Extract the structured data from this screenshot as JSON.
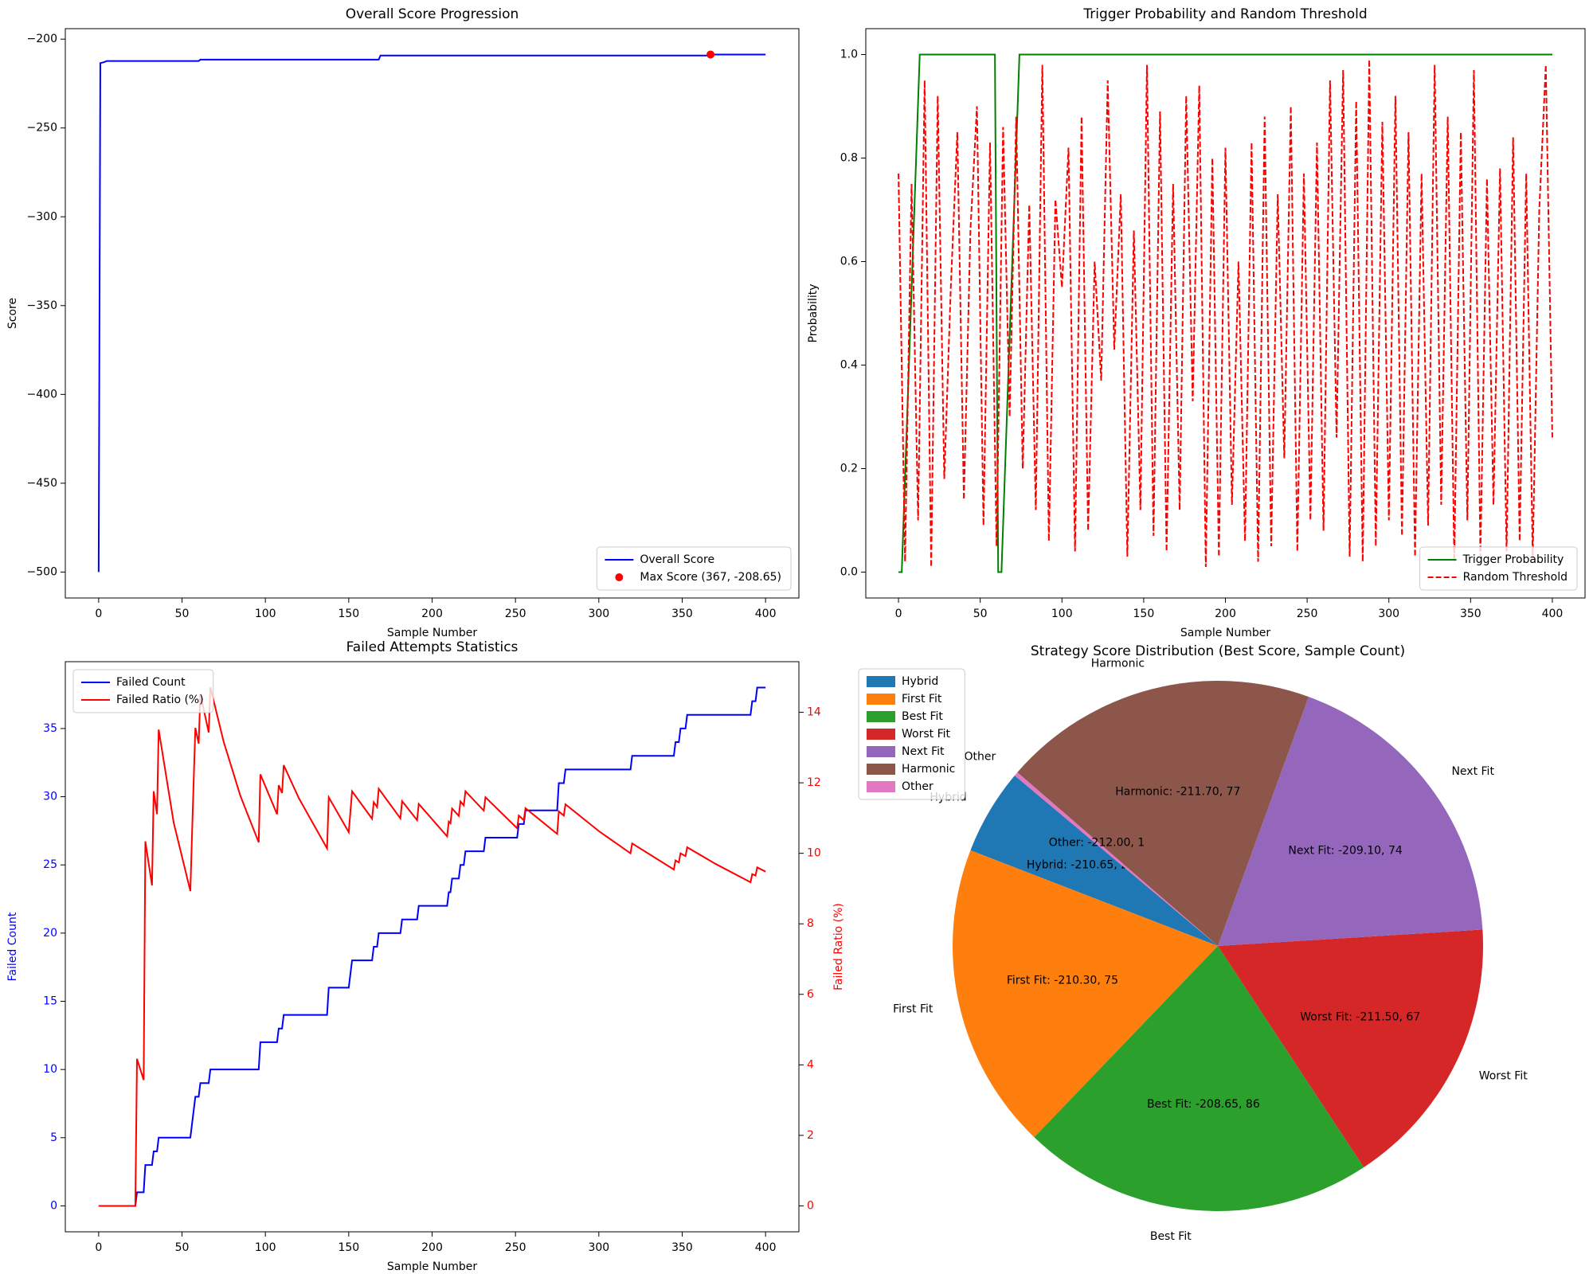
{
  "chart_data": [
    {
      "type": "line",
      "title": "Overall Score Progression",
      "x_label": "Sample Number",
      "y_label": "Score",
      "xlim": [
        -20,
        420
      ],
      "ylim": [
        -514.6,
        -194.1
      ],
      "xticks": [
        0,
        50,
        100,
        150,
        200,
        250,
        300,
        350,
        400
      ],
      "yticks": [
        {
          "value": -500,
          "label": "−500"
        },
        {
          "value": -450,
          "label": "−450"
        },
        {
          "value": -400,
          "label": "−400"
        },
        {
          "value": -350,
          "label": "−350"
        },
        {
          "value": -300,
          "label": "−300"
        },
        {
          "value": -250,
          "label": "−250"
        },
        {
          "value": -200,
          "label": "−200"
        }
      ],
      "legend": "lower right",
      "series": [
        {
          "name": "Overall Score",
          "color": "#0000ff",
          "x": [
            0,
            1,
            3,
            5,
            60,
            61,
            168,
            169,
            366,
            367,
            400
          ],
          "values": [
            -500,
            -213.5,
            -213,
            -212.3,
            -212.3,
            -211.5,
            -211.5,
            -209.2,
            -209.2,
            -208.65,
            -208.65
          ]
        },
        {
          "name": "Max Score (367, -208.65)",
          "type": "scatter",
          "color": "#ff0000",
          "x": [
            367
          ],
          "values": [
            -208.65
          ]
        }
      ]
    },
    {
      "type": "line",
      "title": "Trigger Probability and Random Threshold",
      "x_label": "Sample Number",
      "y_label": "Probability",
      "xlim": [
        -20,
        420
      ],
      "ylim": [
        -0.05,
        1.05
      ],
      "xticks": [
        0,
        50,
        100,
        150,
        200,
        250,
        300,
        350,
        400
      ],
      "yticks": [
        {
          "value": 0,
          "label": "0.0"
        },
        {
          "value": 0.2,
          "label": "0.2"
        },
        {
          "value": 0.4,
          "label": "0.4"
        },
        {
          "value": 0.6,
          "label": "0.6"
        },
        {
          "value": 0.8,
          "label": "0.8"
        },
        {
          "value": 1,
          "label": "1.0"
        }
      ],
      "legend": "lower right",
      "series": [
        {
          "name": "Trigger Probability",
          "color": "#008000",
          "x": [
            0,
            2,
            13,
            59,
            61,
            63,
            74,
            400
          ],
          "values": [
            0,
            0,
            1,
            1,
            0,
            0,
            1,
            1
          ]
        },
        {
          "name": "Random Threshold",
          "color": "#ff0000",
          "linestyle": "dashed",
          "x": [
            0,
            4,
            8,
            12,
            16,
            20,
            24,
            28,
            32,
            36,
            40,
            44,
            48,
            52,
            56,
            60,
            64,
            68,
            72,
            76,
            80,
            84,
            88,
            92,
            96,
            100,
            104,
            108,
            112,
            116,
            120,
            124,
            128,
            132,
            136,
            140,
            144,
            148,
            152,
            156,
            160,
            164,
            168,
            172,
            176,
            180,
            184,
            188,
            192,
            196,
            200,
            204,
            208,
            212,
            216,
            220,
            224,
            228,
            232,
            236,
            240,
            244,
            248,
            252,
            256,
            260,
            264,
            268,
            272,
            276,
            280,
            284,
            288,
            292,
            296,
            300,
            304,
            308,
            312,
            316,
            320,
            324,
            328,
            332,
            336,
            340,
            344,
            348,
            352,
            356,
            360,
            364,
            368,
            372,
            376,
            380,
            384,
            388,
            392,
            396,
            400
          ],
          "values": [
            0.77,
            0.02,
            0.75,
            0.1,
            0.95,
            0.01,
            0.92,
            0.18,
            0.55,
            0.85,
            0.14,
            0.66,
            0.9,
            0.09,
            0.83,
            0.05,
            0.86,
            0.3,
            0.88,
            0.2,
            0.71,
            0.12,
            0.98,
            0.06,
            0.72,
            0.55,
            0.82,
            0.04,
            0.88,
            0.08,
            0.6,
            0.37,
            0.95,
            0.43,
            0.73,
            0.03,
            0.66,
            0.12,
            0.98,
            0.07,
            0.89,
            0.04,
            0.75,
            0.12,
            0.92,
            0.33,
            0.94,
            0.01,
            0.8,
            0.03,
            0.82,
            0.13,
            0.6,
            0.06,
            0.83,
            0.02,
            0.88,
            0.05,
            0.73,
            0.22,
            0.9,
            0.04,
            0.77,
            0.1,
            0.83,
            0.08,
            0.95,
            0.26,
            0.97,
            0.03,
            0.91,
            0.02,
            0.99,
            0.05,
            0.87,
            0.1,
            0.92,
            0.07,
            0.85,
            0.03,
            0.77,
            0.09,
            0.98,
            0.13,
            0.88,
            0.02,
            0.85,
            0.1,
            0.97,
            0.03,
            0.76,
            0.13,
            0.78,
            0.04,
            0.84,
            0.06,
            0.77,
            0.03,
            0.7,
            0.98,
            0.26
          ]
        }
      ]
    },
    {
      "type": "line",
      "title": "Failed Attempts Statistics",
      "x_label": "Sample Number",
      "y_label": "Failed Count",
      "y_color": "#0000ff",
      "y2_label": "Failed Ratio (%)",
      "y2_color": "#ff0000",
      "xlim": [
        -20,
        420
      ],
      "ylim": [
        -1.9,
        39.9
      ],
      "y2lim": [
        -0.735,
        15.435
      ],
      "xticks": [
        0,
        50,
        100,
        150,
        200,
        250,
        300,
        350,
        400
      ],
      "yticks": [
        0,
        5,
        10,
        15,
        20,
        25,
        30,
        35
      ],
      "y2ticks": [
        0,
        2,
        4,
        6,
        8,
        10,
        12,
        14
      ],
      "legend": "upper left",
      "series": [
        {
          "name": "Failed Count",
          "color": "#0000ff",
          "x": [
            0,
            22,
            23,
            27,
            28,
            32,
            33,
            35,
            36,
            55,
            56,
            57,
            58,
            60,
            61,
            66,
            67,
            96,
            97,
            107,
            108,
            110,
            111,
            137,
            138,
            150,
            151,
            152,
            164,
            165,
            167,
            168,
            181,
            182,
            191,
            192,
            209,
            210,
            211,
            212,
            216,
            217,
            219,
            220,
            231,
            232,
            251,
            252,
            255,
            256,
            275,
            276,
            279,
            280,
            319,
            320,
            345,
            346,
            348,
            349,
            352,
            353,
            391,
            392,
            394,
            395,
            400
          ],
          "values": [
            0,
            0,
            1,
            1,
            3,
            3,
            4,
            4,
            5,
            5,
            6,
            7,
            8,
            8,
            9,
            9,
            10,
            10,
            12,
            12,
            13,
            13,
            14,
            14,
            16,
            16,
            17,
            18,
            18,
            19,
            19,
            20,
            20,
            21,
            21,
            22,
            22,
            23,
            23,
            24,
            24,
            25,
            25,
            26,
            26,
            27,
            27,
            28,
            28,
            29,
            29,
            31,
            31,
            32,
            32,
            33,
            33,
            34,
            34,
            35,
            35,
            36,
            36,
            37,
            37,
            38,
            38
          ]
        },
        {
          "name": "Failed Ratio (%)",
          "color": "#ff0000",
          "axis": "y2",
          "x": [
            0,
            22,
            23,
            27,
            28,
            32,
            33,
            35,
            36,
            45,
            55,
            56,
            57,
            58,
            60,
            61,
            66,
            67,
            75,
            85,
            96,
            97,
            107,
            108,
            110,
            111,
            120,
            137,
            138,
            150,
            151,
            152,
            164,
            165,
            167,
            168,
            181,
            182,
            191,
            192,
            209,
            210,
            211,
            212,
            216,
            217,
            219,
            220,
            231,
            232,
            251,
            252,
            255,
            256,
            275,
            276,
            279,
            280,
            300,
            319,
            320,
            345,
            346,
            348,
            349,
            352,
            353,
            370,
            391,
            392,
            394,
            395,
            400
          ],
          "values": [
            0,
            0,
            4.17,
            3.57,
            10.34,
            9.09,
            11.76,
            11.11,
            13.51,
            10.87,
            8.93,
            10.53,
            12.07,
            13.56,
            13.11,
            14.52,
            13.43,
            14.71,
            13.16,
            11.63,
            10.31,
            12.24,
            11.11,
            11.93,
            11.71,
            12.5,
            11.57,
            10.14,
            11.59,
            10.6,
            11.18,
            11.76,
            10.98,
            11.45,
            11.31,
            11.83,
            10.99,
            11.48,
            10.94,
            11.4,
            10.48,
            10.9,
            10.85,
            11.27,
            11.06,
            11.47,
            11.36,
            11.76,
            11.21,
            11.59,
            10.71,
            11.07,
            10.94,
            11.28,
            10.55,
            11.19,
            11.07,
            11.39,
            10.63,
            10.0,
            10.28,
            9.54,
            9.8,
            9.74,
            10.0,
            9.92,
            10.17,
            9.7,
            9.18,
            9.41,
            9.37,
            9.6,
            9.48
          ]
        }
      ]
    },
    {
      "type": "pie",
      "title": "Strategy Score Distribution (Best Score, Sample Count)",
      "labels": [
        "Hybrid",
        "First Fit",
        "Best Fit",
        "Worst Fit",
        "Next Fit",
        "Harmonic",
        "Other"
      ],
      "values": [
        21,
        75,
        86,
        67,
        74,
        77,
        1
      ],
      "value_labels": [
        "Hybrid: -210.65, 21",
        "First Fit: -210.30, 75",
        "Best Fit: -208.65, 86",
        "Worst Fit: -211.50, 67",
        "Next Fit: -209.10, 74",
        "Harmonic: -211.70, 77",
        "Other: -212.00, 1"
      ],
      "colors": [
        "#1f77b4",
        "#ff7f0e",
        "#2ca02c",
        "#d62728",
        "#9467bd",
        "#8c564b",
        "#e377c2"
      ],
      "start_angle": 140,
      "legend": "upper left"
    }
  ]
}
